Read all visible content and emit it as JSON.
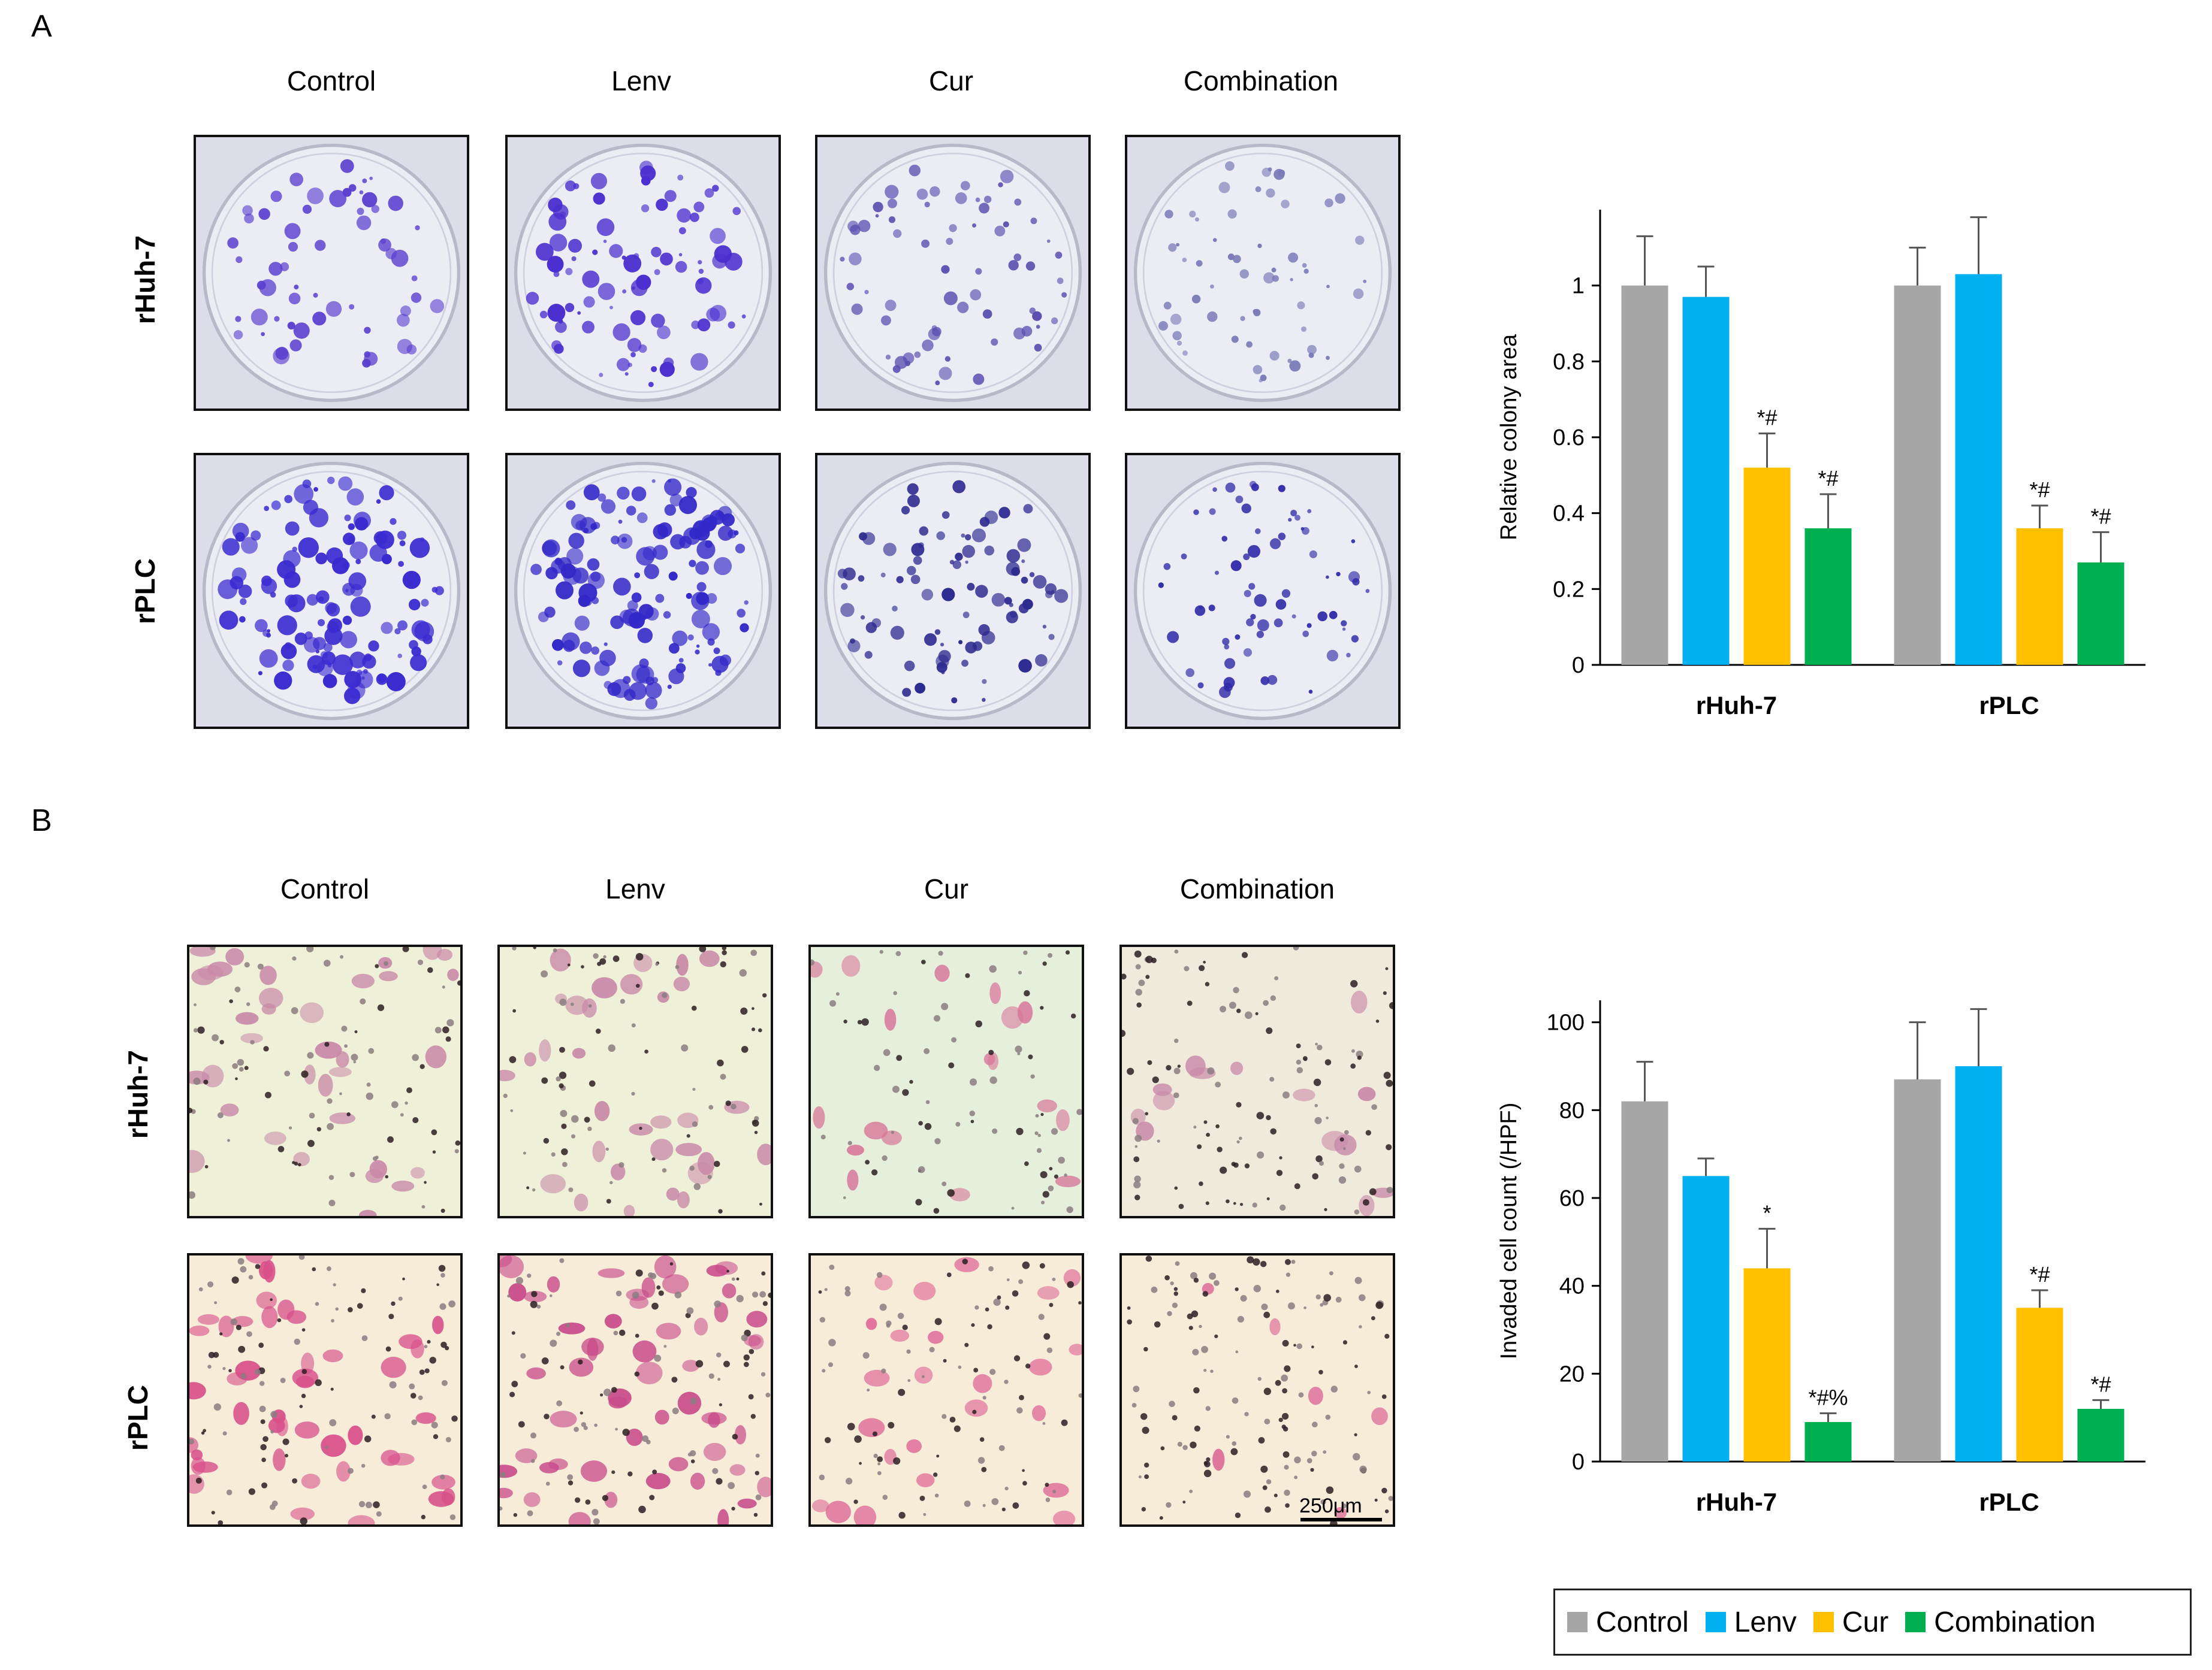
{
  "panels": {
    "a": {
      "letter": "A",
      "columns": [
        "Control",
        "Lenv",
        "Cur",
        "Combination"
      ],
      "rows": [
        "rHuh-7",
        "rPLC"
      ]
    },
    "b": {
      "letter": "B",
      "columns": [
        "Control",
        "Lenv",
        "Cur",
        "Combination"
      ],
      "rows": [
        "rHuh-7",
        "rPLC"
      ],
      "scale_bar": "250μm"
    }
  },
  "legend": {
    "items": [
      {
        "label": "Control",
        "color": "#a6a6a6"
      },
      {
        "label": "Lenv",
        "color": "#00b0f0"
      },
      {
        "label": "Cur",
        "color": "#ffc000"
      },
      {
        "label": "Combination",
        "color": "#00b050"
      }
    ]
  },
  "chart_data": [
    {
      "type": "bar",
      "title": "",
      "xlabel": "",
      "ylabel": "Relative colony area",
      "categories": [
        "rHuh-7",
        "rPLC"
      ],
      "ylim": [
        0,
        1.2
      ],
      "yticks": [
        0,
        0.2,
        0.4,
        0.6,
        0.8,
        1
      ],
      "ytick_labels": [
        "0",
        "0.2",
        "0.4",
        "0.6",
        "0.8",
        "1"
      ],
      "series": [
        {
          "name": "Control",
          "color": "#a6a6a6",
          "values": [
            1.0,
            1.0
          ],
          "errors": [
            0.13,
            0.1
          ],
          "annotations": [
            "",
            ""
          ]
        },
        {
          "name": "Lenv",
          "color": "#00b0f0",
          "values": [
            0.97,
            1.03
          ],
          "errors": [
            0.08,
            0.15
          ],
          "annotations": [
            "",
            ""
          ]
        },
        {
          "name": "Cur",
          "color": "#ffc000",
          "values": [
            0.52,
            0.36
          ],
          "errors": [
            0.09,
            0.06
          ],
          "annotations": [
            "*#",
            "*#"
          ]
        },
        {
          "name": "Combination",
          "color": "#00b050",
          "values": [
            0.36,
            0.27
          ],
          "errors": [
            0.09,
            0.08
          ],
          "annotations": [
            "*#",
            "*#"
          ]
        }
      ]
    },
    {
      "type": "bar",
      "title": "",
      "xlabel": "",
      "ylabel": "Invaded cell count  (/HPF)",
      "categories": [
        "rHuh-7",
        "rPLC"
      ],
      "ylim": [
        0,
        105
      ],
      "yticks": [
        0,
        20,
        40,
        60,
        80,
        100
      ],
      "ytick_labels": [
        "0",
        "20",
        "40",
        "60",
        "80",
        "100"
      ],
      "series": [
        {
          "name": "Control",
          "color": "#a6a6a6",
          "values": [
            82,
            87
          ],
          "errors": [
            9,
            13
          ],
          "annotations": [
            "",
            ""
          ]
        },
        {
          "name": "Lenv",
          "color": "#00b0f0",
          "values": [
            65,
            90
          ],
          "errors": [
            4,
            13
          ],
          "annotations": [
            "",
            ""
          ]
        },
        {
          "name": "Cur",
          "color": "#ffc000",
          "values": [
            44,
            35
          ],
          "errors": [
            9,
            4
          ],
          "annotations": [
            "*",
            "*#"
          ]
        },
        {
          "name": "Combination",
          "color": "#00b050",
          "values": [
            9,
            12
          ],
          "errors": [
            2,
            2
          ],
          "annotations": [
            "*#%",
            "*#"
          ]
        }
      ]
    }
  ]
}
